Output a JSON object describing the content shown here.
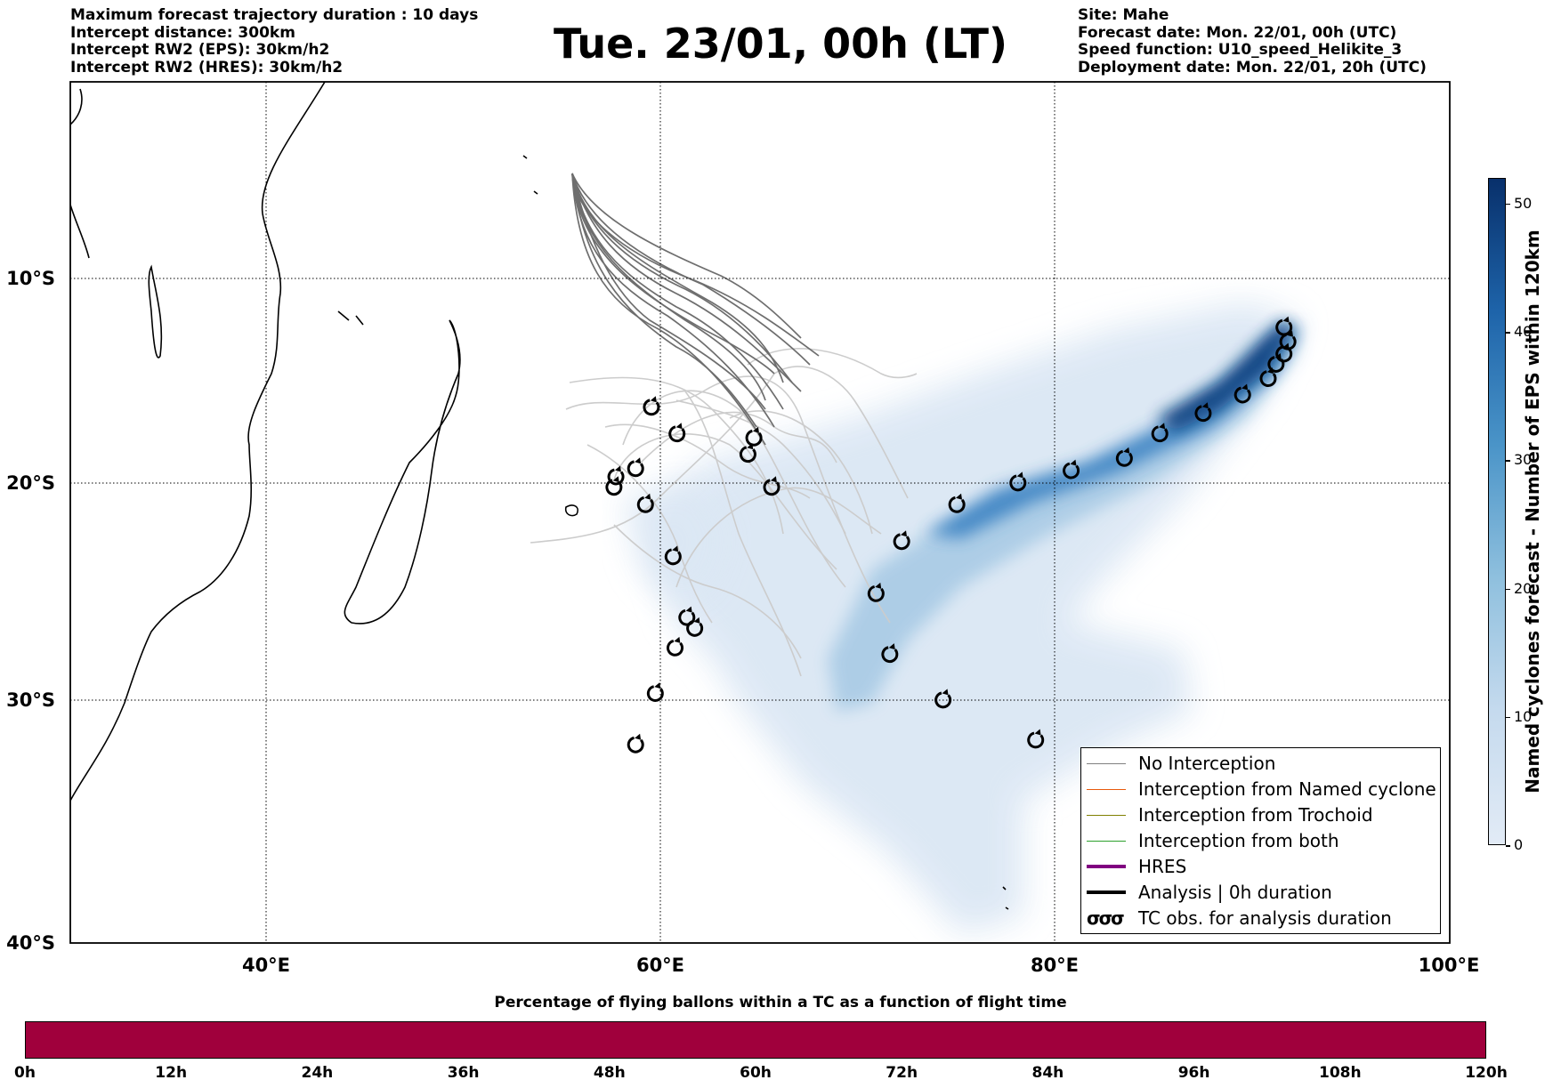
{
  "header_left": {
    "duration": "Maximum forecast trajectory duration : 10 days",
    "intercept_distance": "Intercept distance: 300km",
    "rw2_eps": "Intercept RW2 (EPS):  30km/h2",
    "rw2_hres": "Intercept RW2 (HRES): 30km/h2"
  },
  "title": "Tue. 23/01, 00h (LT)",
  "header_right": {
    "site": "Site: Mahe",
    "forecast_date": "Forecast date: Mon. 22/01, 00h (UTC)",
    "speed_function": "Speed function: U10_speed_Helikite_3",
    "deployment_date": "Deployment date: Mon. 22/01, 20h (UTC)"
  },
  "map": {
    "lon_labels": [
      "40°E",
      "60°E",
      "80°E",
      "100°E"
    ],
    "lat_labels": [
      "10°S",
      "20°S",
      "30°S",
      "40°S"
    ],
    "extent": {
      "lon": [
        30,
        100
      ],
      "lat": [
        -40.3,
        -0.3
      ]
    },
    "colors": {
      "coast": "#000000",
      "eps_track": "#6e6e6e",
      "old_track": "#c8c8c8",
      "density": "#2171b5"
    },
    "tc_obs": [
      {
        "lon": 59.5,
        "lat": -16.3
      },
      {
        "lon": 60.8,
        "lat": -17.6
      },
      {
        "lon": 64.7,
        "lat": -17.8
      },
      {
        "lon": 64.4,
        "lat": -18.6
      },
      {
        "lon": 57.7,
        "lat": -19.7
      },
      {
        "lon": 57.6,
        "lat": -20.2
      },
      {
        "lon": 58.7,
        "lat": -19.3
      },
      {
        "lon": 59.2,
        "lat": -21.0
      },
      {
        "lon": 65.6,
        "lat": -20.2
      },
      {
        "lon": 60.6,
        "lat": -23.4
      },
      {
        "lon": 61.3,
        "lat": -26.2
      },
      {
        "lon": 61.7,
        "lat": -26.7
      },
      {
        "lon": 60.7,
        "lat": -27.6
      },
      {
        "lon": 59.7,
        "lat": -29.7
      },
      {
        "lon": 58.7,
        "lat": -31.9
      },
      {
        "lon": 70.9,
        "lat": -25.1
      },
      {
        "lon": 71.6,
        "lat": -27.9
      },
      {
        "lon": 74.3,
        "lat": -30.0
      },
      {
        "lon": 79.0,
        "lat": -31.7
      },
      {
        "lon": 72.2,
        "lat": -22.7
      },
      {
        "lon": 75.0,
        "lat": -21.0
      },
      {
        "lon": 78.1,
        "lat": -20.0
      },
      {
        "lon": 80.8,
        "lat": -19.4
      },
      {
        "lon": 83.5,
        "lat": -18.8
      },
      {
        "lon": 85.3,
        "lat": -17.6
      },
      {
        "lon": 87.5,
        "lat": -16.6
      },
      {
        "lon": 89.5,
        "lat": -15.7
      },
      {
        "lon": 90.8,
        "lat": -14.9
      },
      {
        "lon": 91.2,
        "lat": -14.2
      },
      {
        "lon": 91.6,
        "lat": -13.7
      },
      {
        "lon": 91.8,
        "lat": -13.1
      },
      {
        "lon": 91.6,
        "lat": -12.4
      }
    ]
  },
  "legend": {
    "items": [
      {
        "label": "No Interception",
        "color": "#808080",
        "width": 1.2
      },
      {
        "label": "Interception from Named cyclone",
        "color": "#e8590c",
        "width": 1.2
      },
      {
        "label": "Interception from Trochoid",
        "color": "#808000",
        "width": 1.2
      },
      {
        "label": "Interception from both",
        "color": "#2ca02c",
        "width": 1.2
      },
      {
        "label": "HRES",
        "color": "#800080",
        "width": 4
      },
      {
        "label": "Analysis | 0h duration",
        "color": "#000000",
        "width": 4
      },
      {
        "label": "TC obs. for analysis duration",
        "color": "#000000",
        "width": 0
      }
    ],
    "tc_symbol": "σσσ"
  },
  "colorbar": {
    "label": "Named cyclones forecast - Number of EPS within 120km",
    "ticks": [
      "0",
      "10",
      "20",
      "30",
      "40",
      "50"
    ],
    "range": [
      0,
      52
    ]
  },
  "bottom_bar": {
    "title": "Percentage of flying ballons within a TC as a function of flight time",
    "color": "#a0003c",
    "ticks": [
      "0h",
      "12h",
      "24h",
      "36h",
      "48h",
      "60h",
      "72h",
      "84h",
      "96h",
      "108h",
      "120h"
    ]
  }
}
